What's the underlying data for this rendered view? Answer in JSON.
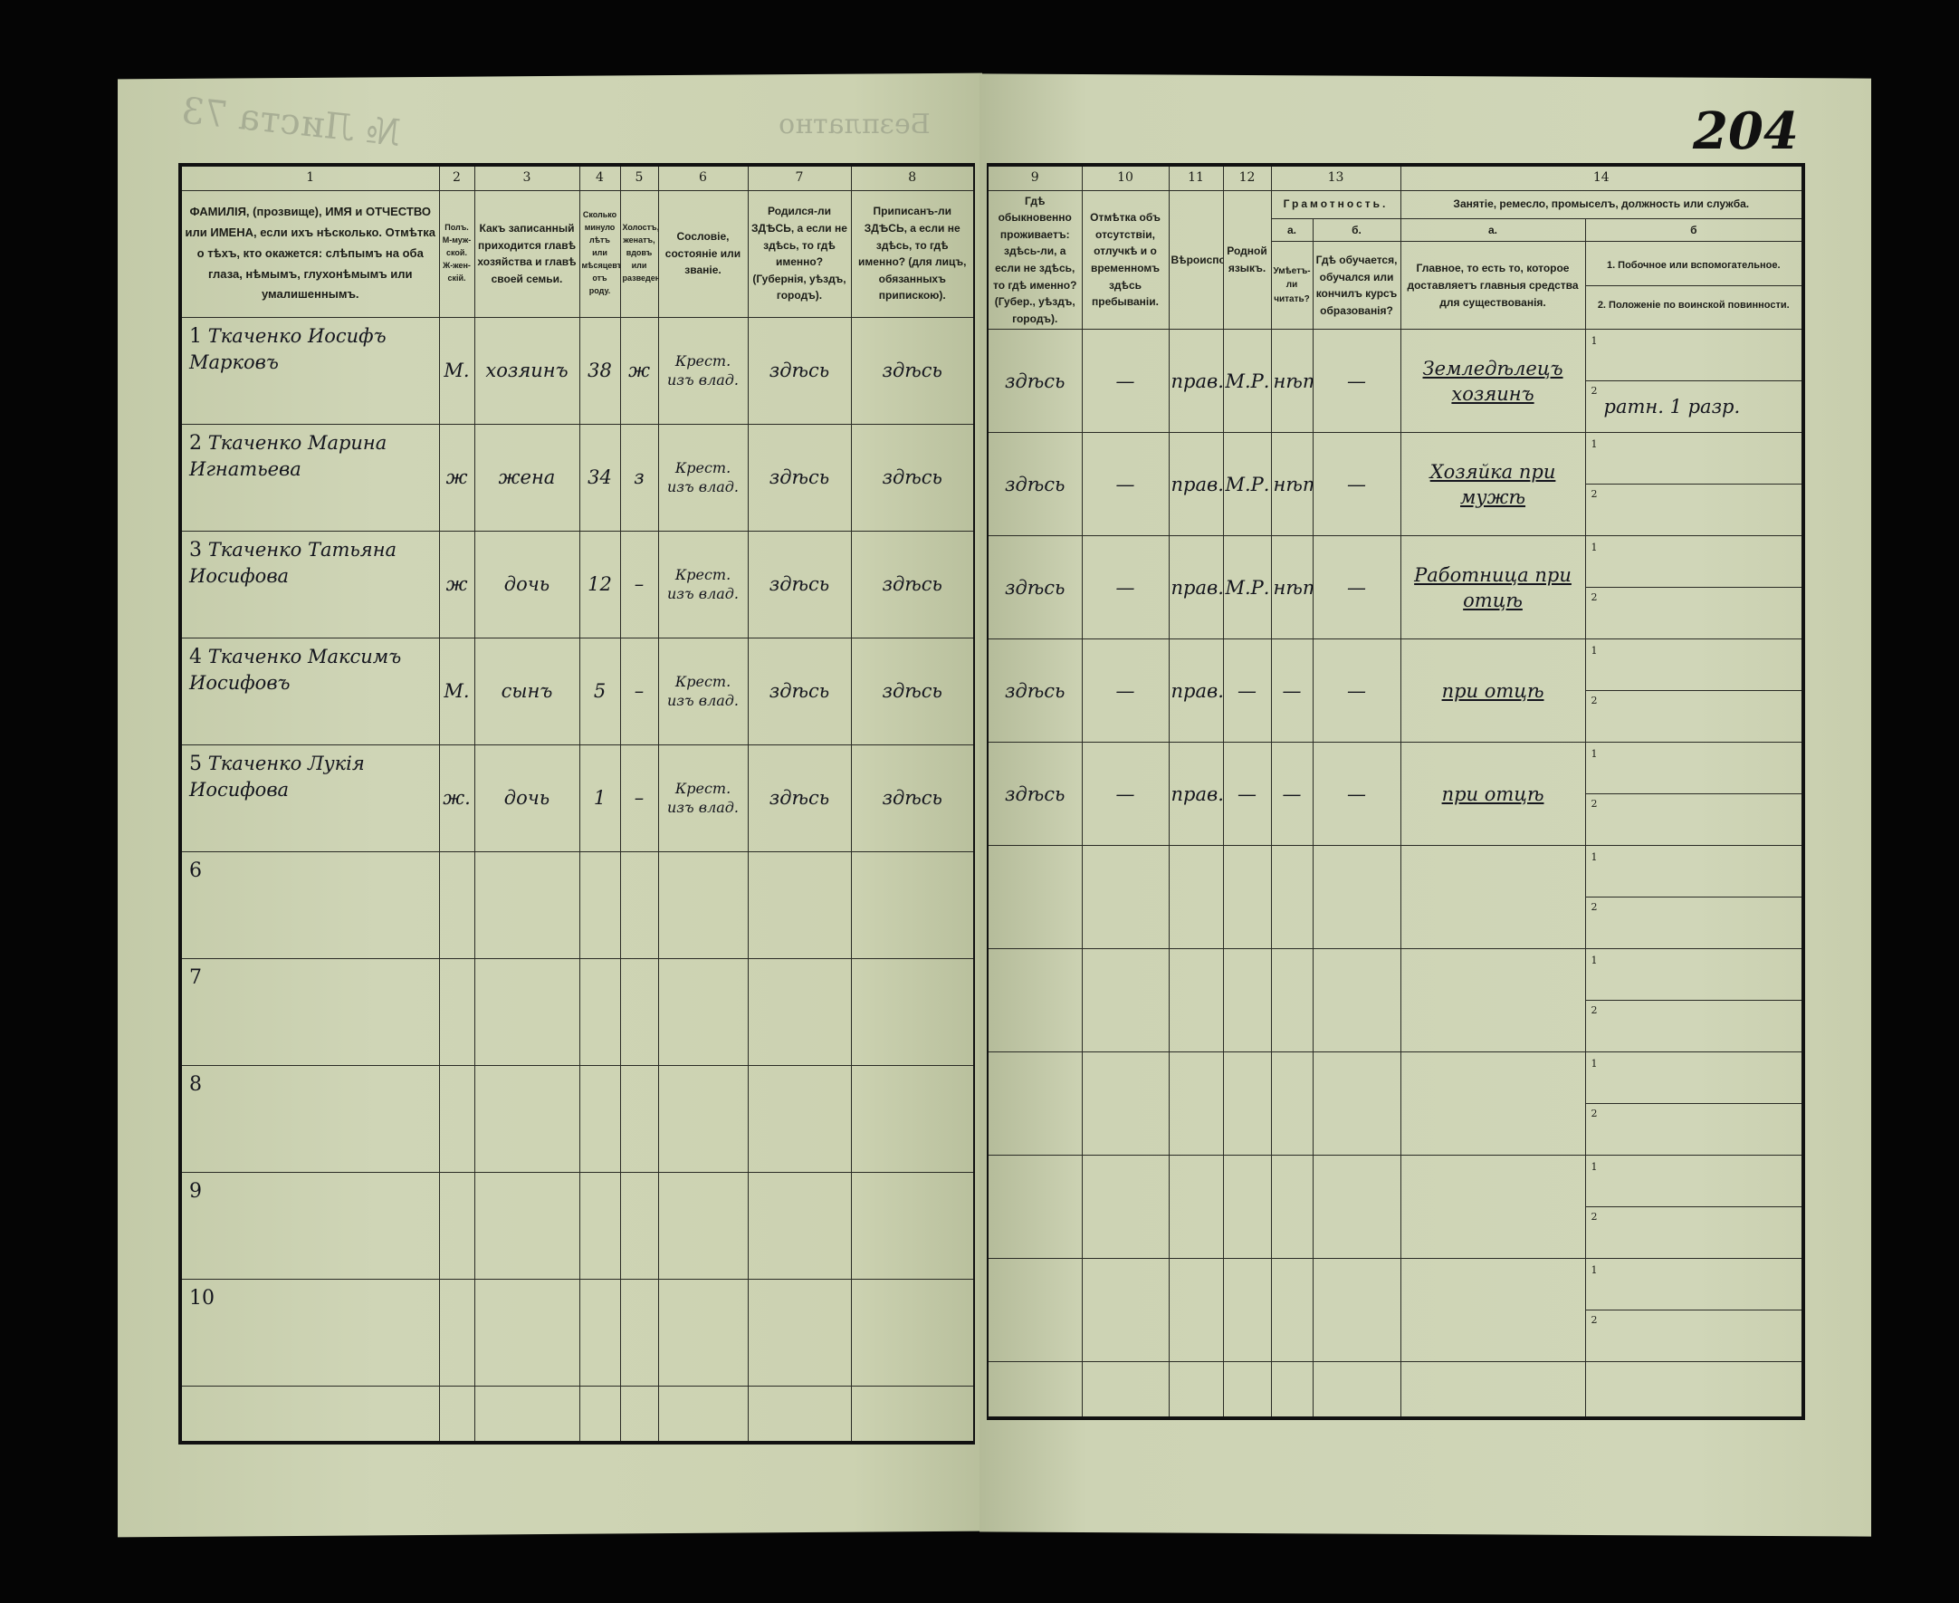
{
  "header_marks": {
    "free_stamp": "Безплатно",
    "sheet_number": "№ Листа 73",
    "page_number": "204"
  },
  "columns_left": [
    {
      "num": "1",
      "title": "ФАМИЛІЯ, (прозвище), ИМЯ и ОТЧЕСТВО или ИМЕНА, если ихъ нѣсколько. Отмѣтка о тѣхъ, кто окажется: слѣпымъ на оба глаза, нѣмымъ, глухонѣмымъ или умалишеннымъ."
    },
    {
      "num": "2",
      "title": "Полъ. М-муж-ской. Ж-жен-скій."
    },
    {
      "num": "3",
      "title": "Какъ записанный приходится главѣ хозяйства и главѣ своей семьи."
    },
    {
      "num": "4",
      "title": "Сколько минуло лѣтъ или мѣсяцевъ отъ роду."
    },
    {
      "num": "5",
      "title": "Холостъ, женатъ, вдовъ или разведенъ."
    },
    {
      "num": "6",
      "title": "Сословіе, состояніе или званіе."
    },
    {
      "num": "7",
      "title": "Родился-ли ЗДѢСЬ, а если не здѣсь, то гдѣ именно? (Губернія, уѣздъ, городъ)."
    },
    {
      "num": "8",
      "title": "Приписанъ-ли ЗДѢСЬ, а если не здѣсь, то гдѣ именно? (для лицъ, обязанныхъ припискою)."
    }
  ],
  "columns_right": {
    "c9": {
      "num": "9",
      "title": "Гдѣ обыкновенно проживаетъ: здѣсь-ли, а если не здѣсь, то гдѣ именно? (Губер., уѣздъ, городъ)."
    },
    "c10": {
      "num": "10",
      "title": "Отмѣтка объ отсутствіи, отлучкѣ и о временномъ здѣсь пребываніи."
    },
    "c11": {
      "num": "11",
      "title": "Вѣроисповѣданіе."
    },
    "c12": {
      "num": "12",
      "title": "Родной языкъ."
    },
    "c13": {
      "num": "13",
      "title": "Грамотность.",
      "a_label": "а.",
      "a_title": "Умѣетъ-ли читать?",
      "b_label": "б.",
      "b_title": "Гдѣ обучается, обучался или кончилъ курсъ образованія?"
    },
    "c14": {
      "num": "14",
      "title": "Занятіе, ремесло, промыселъ, должность или служба.",
      "a_label": "а.",
      "a_title": "Главное, то есть то, которое доставляетъ главныя средства для существованія.",
      "b_label": "б",
      "b1_title": "1. Побочное или вспомогательное.",
      "b2_title": "2. Положеніе по воинской повинности."
    }
  },
  "rows": [
    {
      "n": "1",
      "name": "Ткаченко Иосифъ Марковъ",
      "sex": "М.",
      "relation": "хозяинъ",
      "age": "38",
      "marital": "ж",
      "estate": "Крест. изъ влад.",
      "born": "здѣсь",
      "registered": "здѣсь",
      "resides": "здѣсь",
      "absence": "—",
      "religion": "прав.",
      "language": "М.Р.",
      "literate": "нѣтъ",
      "education": "—",
      "occupation": "Земледѣлецъ хозяинъ",
      "secondary": "",
      "military": "ратн. 1 разр."
    },
    {
      "n": "2",
      "name": "Ткаченко Марина Игнатьева",
      "sex": "ж",
      "relation": "жена",
      "age": "34",
      "marital": "з",
      "estate": "Крест. изъ влад.",
      "born": "здѣсь",
      "registered": "здѣсь",
      "resides": "здѣсь",
      "absence": "—",
      "religion": "прав.",
      "language": "М.Р.",
      "literate": "нѣтъ",
      "education": "—",
      "occupation": "Хозяйка при мужѣ",
      "secondary": "",
      "military": ""
    },
    {
      "n": "3",
      "name": "Ткаченко Татьяна Иосифова",
      "sex": "ж",
      "relation": "дочь",
      "age": "12",
      "marital": "–",
      "estate": "Крест. изъ влад.",
      "born": "здѣсь",
      "registered": "здѣсь",
      "resides": "здѣсь",
      "absence": "—",
      "religion": "прав.",
      "language": "М.Р.",
      "literate": "нѣтъ",
      "education": "—",
      "occupation": "Работница при отцѣ",
      "secondary": "",
      "military": ""
    },
    {
      "n": "4",
      "name": "Ткаченко Максимъ Иосифовъ",
      "sex": "М.",
      "relation": "сынъ",
      "age": "5",
      "marital": "–",
      "estate": "Крест. изъ влад.",
      "born": "здѣсь",
      "registered": "здѣсь",
      "resides": "здѣсь",
      "absence": "—",
      "religion": "прав.",
      "language": "—",
      "literate": "—",
      "education": "—",
      "occupation": "при отцѣ",
      "secondary": "",
      "military": ""
    },
    {
      "n": "5",
      "name": "Ткаченко Лукія Иосифова",
      "sex": "ж.",
      "relation": "дочь",
      "age": "1",
      "marital": "–",
      "estate": "Крест. изъ влад.",
      "born": "здѣсь",
      "registered": "здѣсь",
      "resides": "здѣсь",
      "absence": "—",
      "religion": "прав.",
      "language": "—",
      "literate": "—",
      "education": "—",
      "occupation": "при отцѣ",
      "secondary": "",
      "military": ""
    },
    {
      "n": "6"
    },
    {
      "n": "7"
    },
    {
      "n": "8"
    },
    {
      "n": "9"
    },
    {
      "n": "10"
    }
  ],
  "subrow_labels": [
    "1",
    "2"
  ],
  "colors": {
    "paper": "#ccd2b2",
    "ink": "#15161e",
    "background": "#050505"
  }
}
